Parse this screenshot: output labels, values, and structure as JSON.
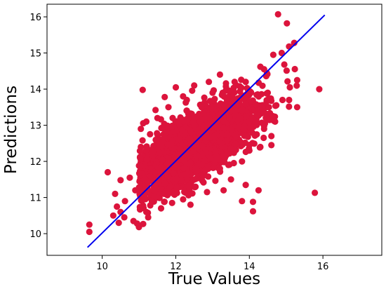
{
  "chart_data": {
    "type": "scatter",
    "title": "",
    "xlabel": "True Values",
    "ylabel": "Predictions",
    "xlim": [
      8.5,
      17.6
    ],
    "ylim": [
      9.4,
      16.35
    ],
    "xticks": [
      "10",
      "12",
      "14",
      "16"
    ],
    "yticks": [
      "10",
      "11",
      "12",
      "13",
      "14",
      "15",
      "16"
    ],
    "grid": false,
    "marker_color": "#dc143c",
    "line_color": "#0000ee",
    "reference_line": {
      "x": [
        9.6,
        16.05
      ],
      "y": [
        9.62,
        16.05
      ]
    },
    "cloud": {
      "count": 2600,
      "x_min": 11.0,
      "x_mean": 12.6,
      "x_sd": 0.75,
      "x_max": 15.3,
      "slope": 0.6,
      "y_mean": 12.45,
      "y_sd": 0.42
    },
    "points": [
      [
        14.78,
        16.07
      ],
      [
        15.02,
        15.82
      ],
      [
        15.22,
        15.28
      ],
      [
        15.08,
        15.18
      ],
      [
        14.88,
        15.0
      ],
      [
        14.65,
        14.95
      ],
      [
        14.3,
        14.62
      ],
      [
        14.4,
        14.55
      ],
      [
        14.95,
        14.68
      ],
      [
        15.3,
        14.25
      ],
      [
        15.9,
        14.0
      ],
      [
        15.78,
        11.13
      ],
      [
        11.1,
        13.98
      ],
      [
        11.7,
        13.78
      ],
      [
        12.0,
        14.05
      ],
      [
        11.45,
        13.42
      ],
      [
        10.15,
        11.7
      ],
      [
        10.5,
        11.48
      ],
      [
        10.75,
        11.55
      ],
      [
        10.35,
        11.1
      ],
      [
        10.4,
        10.75
      ],
      [
        10.62,
        10.9
      ],
      [
        10.5,
        10.6
      ],
      [
        10.6,
        10.45
      ],
      [
        10.3,
        10.5
      ],
      [
        10.45,
        10.3
      ],
      [
        9.65,
        10.25
      ],
      [
        9.65,
        10.05
      ],
      [
        11.25,
        10.45
      ],
      [
        10.85,
        10.35
      ],
      [
        10.95,
        10.28
      ],
      [
        11.0,
        10.18
      ],
      [
        11.2,
        10.6
      ],
      [
        14.1,
        10.88
      ],
      [
        14.1,
        10.62
      ],
      [
        15.3,
        13.5
      ],
      [
        14.7,
        13.1
      ],
      [
        14.6,
        12.7
      ],
      [
        14.6,
        12.45
      ],
      [
        14.9,
        13.7
      ],
      [
        15.1,
        14.05
      ],
      [
        14.5,
        13.9
      ],
      [
        13.9,
        14.2
      ],
      [
        13.6,
        14.2
      ],
      [
        12.9,
        14.2
      ],
      [
        13.2,
        14.4
      ],
      [
        12.5,
        14.1
      ],
      [
        12.2,
        13.8
      ],
      [
        12.85,
        11.15
      ],
      [
        13.5,
        11.5
      ],
      [
        13.9,
        11.35
      ],
      [
        13.3,
        11.2
      ],
      [
        12.4,
        10.8
      ],
      [
        11.9,
        10.85
      ],
      [
        11.6,
        10.7
      ],
      [
        11.35,
        10.9
      ],
      [
        11.5,
        11.0
      ],
      [
        10.9,
        11.2
      ],
      [
        13.8,
        10.9
      ],
      [
        14.25,
        11.2
      ],
      [
        11.05,
        12.4
      ],
      [
        11.05,
        12.9
      ],
      [
        11.2,
        13.1
      ],
      [
        11.3,
        12.75
      ],
      [
        11.5,
        13.2
      ],
      [
        11.8,
        13.5
      ],
      [
        12.3,
        13.7
      ],
      [
        12.7,
        13.5
      ],
      [
        13.0,
        13.9
      ],
      [
        13.5,
        13.95
      ],
      [
        13.9,
        13.6
      ],
      [
        14.2,
        13.3
      ],
      [
        14.4,
        12.9
      ],
      [
        14.0,
        12.3
      ],
      [
        13.8,
        12.0
      ],
      [
        13.2,
        11.8
      ]
    ]
  }
}
